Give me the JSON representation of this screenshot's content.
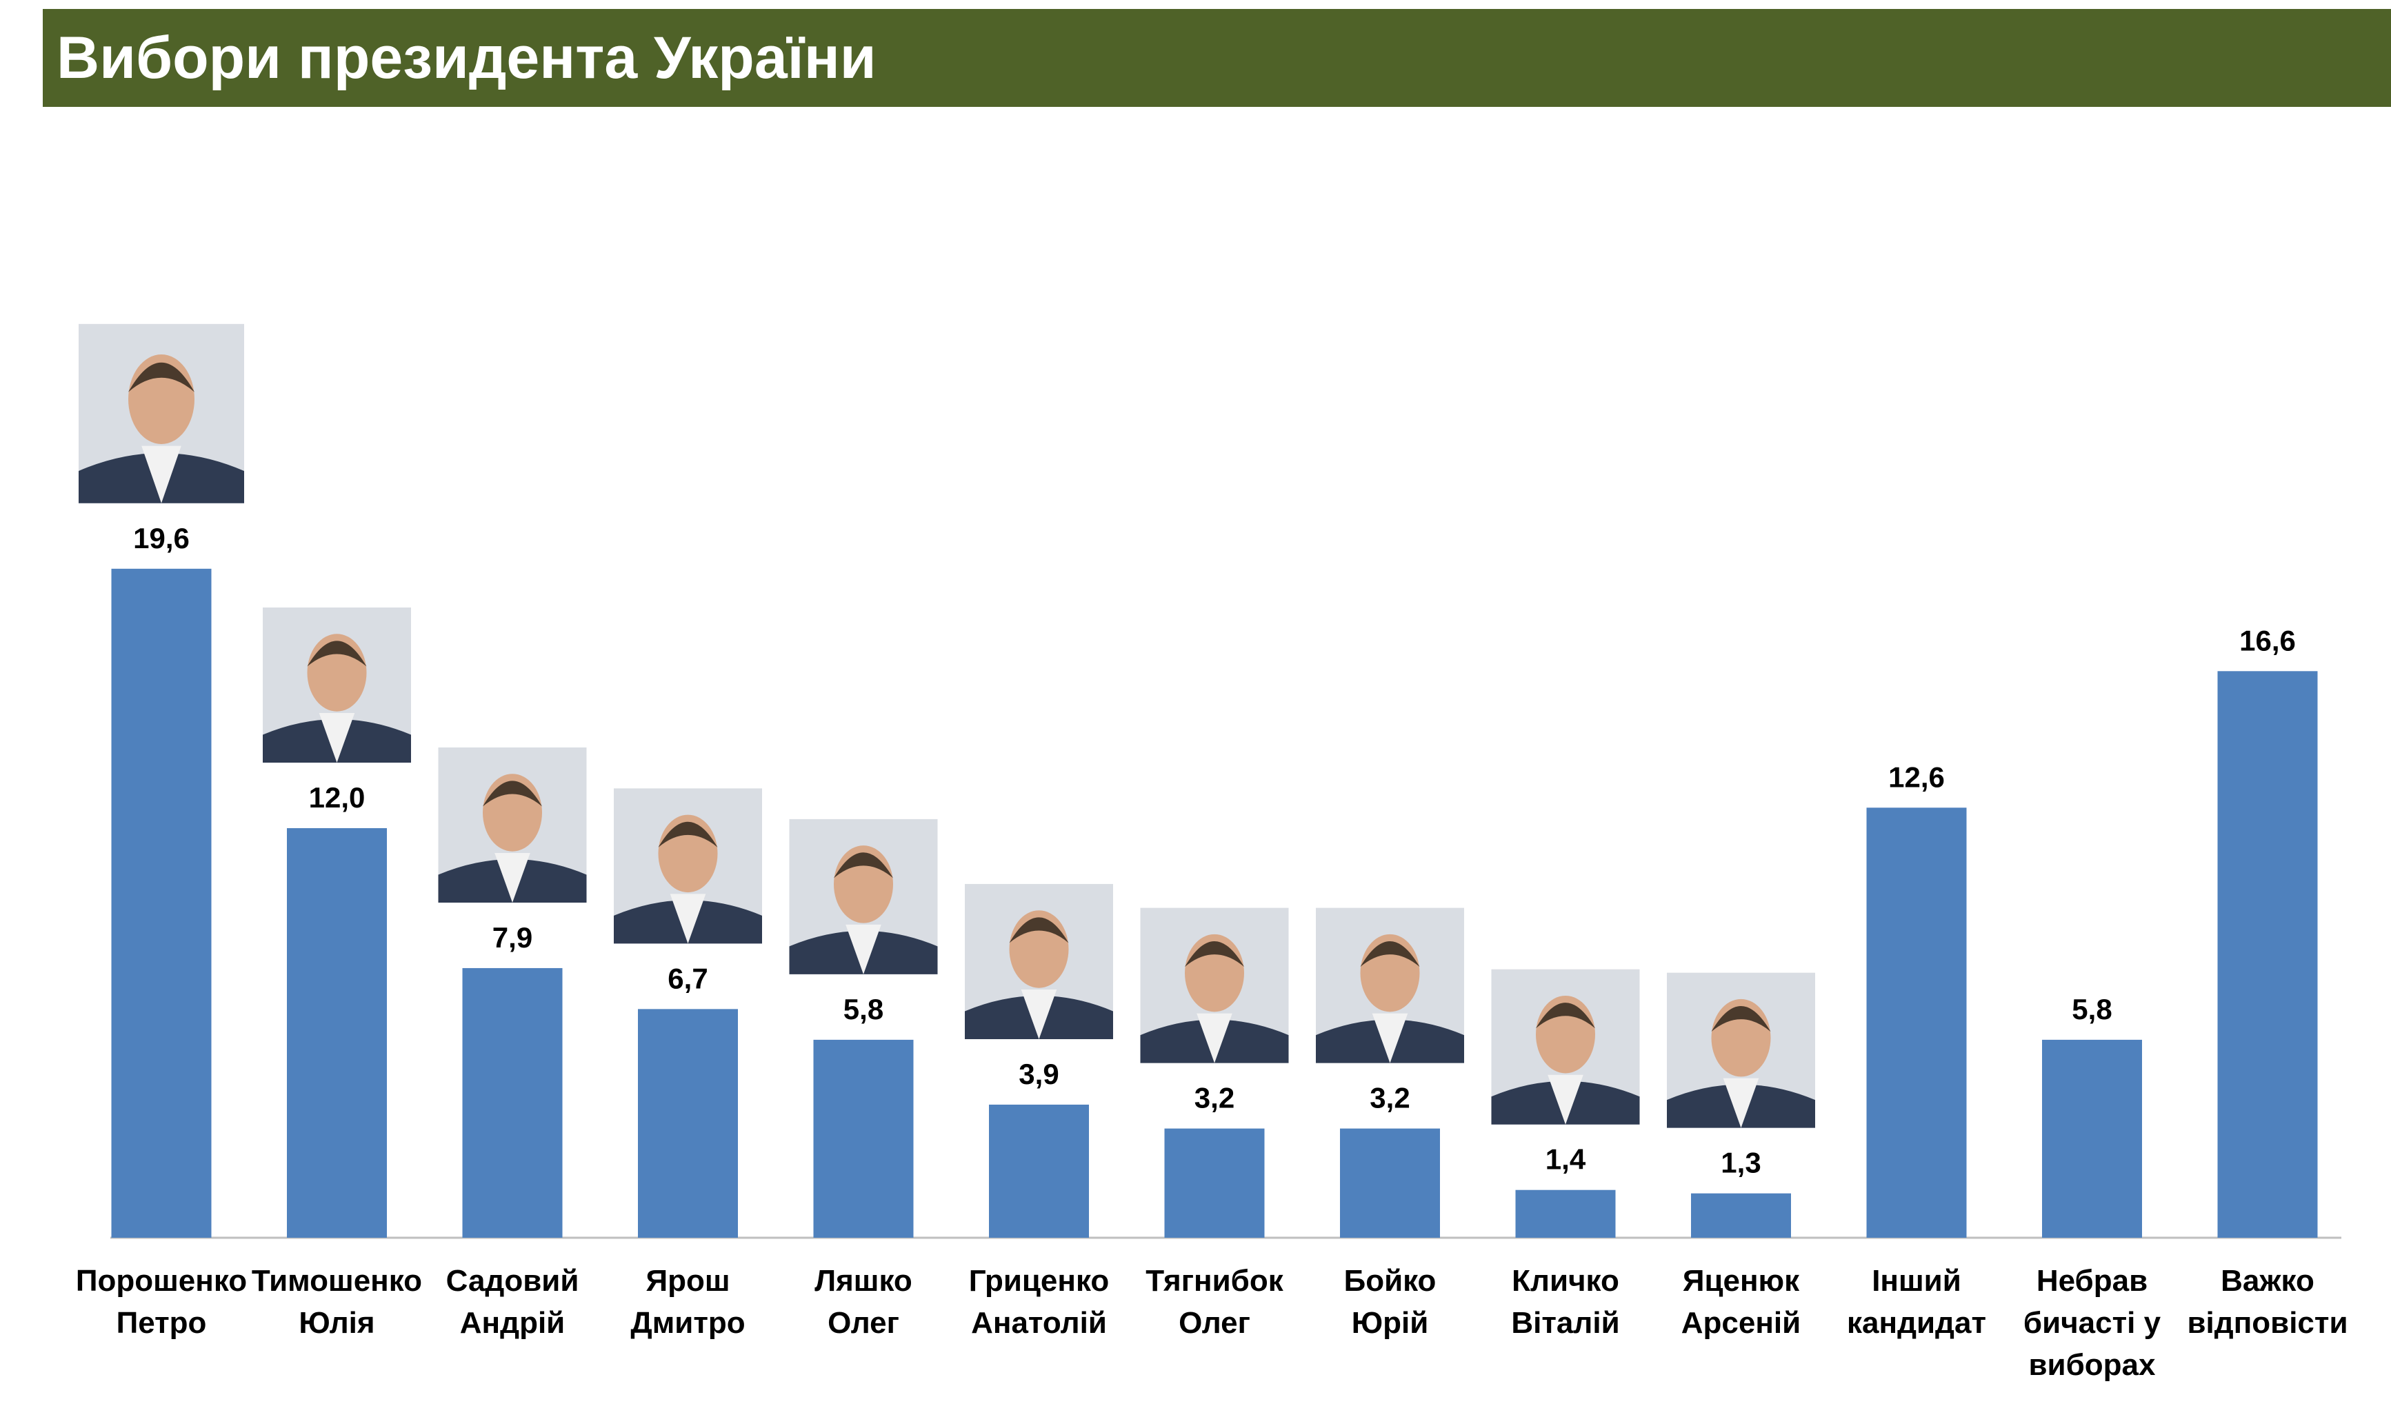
{
  "header": {
    "title": "Вибори президента України"
  },
  "colors": {
    "header_bg": "#4f6228",
    "bar": "#4f81bd",
    "photo_bg": "#d9dde3"
  },
  "chart_data": {
    "type": "bar",
    "title": "Вибори президента України",
    "xlabel": "",
    "ylabel": "",
    "ylim": [
      0,
      20
    ],
    "grid": false,
    "legend": "none",
    "categories": [
      [
        "Порошенко",
        "Петро"
      ],
      [
        "Тимошенко",
        "Юлія"
      ],
      [
        "Садовий",
        "Андрій"
      ],
      [
        "Ярош",
        "Дмитро"
      ],
      [
        "Ляшко",
        "Олег"
      ],
      [
        "Гриценко",
        "Анатолій"
      ],
      [
        "Тягнибок",
        "Олег"
      ],
      [
        "Бойко",
        "Юрій"
      ],
      [
        "Кличко",
        "Віталій"
      ],
      [
        "Яценюк",
        "Арсеній"
      ],
      [
        "Інший",
        "кандидат"
      ],
      [
        "Небрав",
        "бичасті у",
        "виборах"
      ],
      [
        "Важко",
        "відповісти"
      ]
    ],
    "values": [
      19.6,
      12.0,
      7.9,
      6.7,
      5.8,
      3.9,
      3.2,
      3.2,
      1.4,
      1.3,
      12.6,
      5.8,
      16.6
    ],
    "value_labels": [
      "19,6",
      "12,0",
      "7,9",
      "6,7",
      "5,8",
      "3,9",
      "3,2",
      "3,2",
      "1,4",
      "1,3",
      "12,6",
      "5,8",
      "16,6"
    ],
    "photos": [
      true,
      true,
      true,
      true,
      true,
      true,
      true,
      true,
      true,
      true,
      false,
      false,
      false
    ]
  }
}
